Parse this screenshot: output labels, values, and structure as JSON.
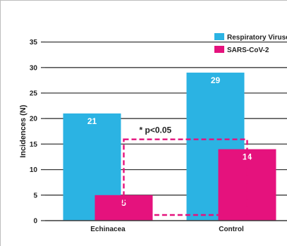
{
  "chart_data": {
    "type": "bar",
    "categories": [
      "Echinacea",
      "Control"
    ],
    "series": [
      {
        "name": "Respiratory Viruses",
        "color": "#2bb3e3",
        "values": [
          21,
          29
        ],
        "labels": [
          "21",
          "29"
        ]
      },
      {
        "name": "SARS-CoV-2",
        "color": "#e5127d",
        "values": [
          5,
          14
        ],
        "labels": [
          "5",
          "14"
        ]
      }
    ],
    "ylabel": "Incidences (N)",
    "yticks": [
      0,
      5,
      10,
      15,
      20,
      25,
      30,
      35
    ],
    "ytick_labels": [
      "0",
      "5",
      "10",
      "15",
      "20",
      "25",
      "30",
      "35"
    ],
    "ylim": [
      0,
      38
    ],
    "grid": true,
    "legend_position": "top-right",
    "annotation": {
      "text": "* p<0.05",
      "style": "dashed-box",
      "color": "#e5127d",
      "series": "SARS-CoV-2"
    }
  }
}
